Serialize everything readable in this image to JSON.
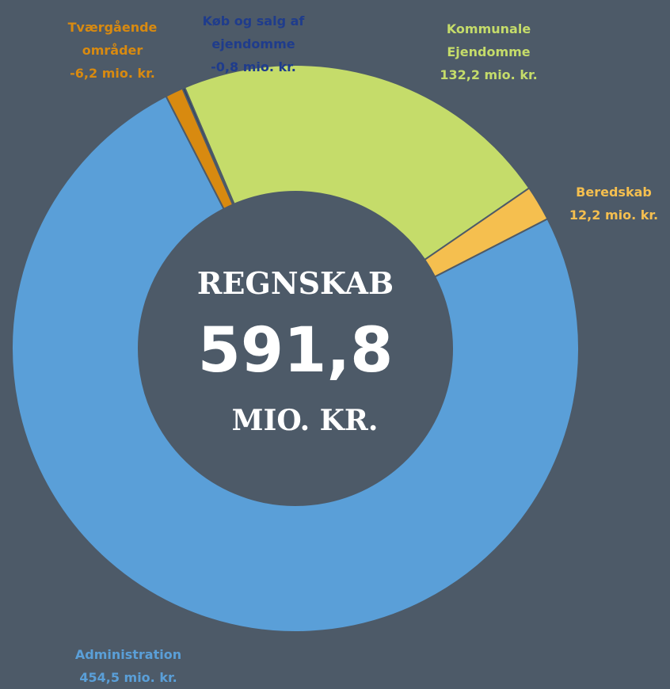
{
  "chart_data": {
    "type": "donut",
    "center_title": "REGNSKAB",
    "center_value": "591,8",
    "center_unit": "MIO. KR.",
    "categories": [
      "Kommunale Ejendomme",
      "Beredskab",
      "Administration",
      "Tværgående områder",
      "Køb og salg af ejendomme"
    ],
    "values": [
      132.2,
      12.2,
      454.5,
      -6.2,
      -0.8
    ],
    "value_labels": [
      "132,2 mio. kr.",
      "12,2 mio. kr.",
      "454,5 mio. kr.",
      "-6,2 mio. kr.",
      "-0,8 mio. kr."
    ],
    "colors": [
      "#c5dc6a",
      "#f5bf4f",
      "#5a9fd8",
      "#d88a10",
      "#1f3864"
    ]
  }
}
